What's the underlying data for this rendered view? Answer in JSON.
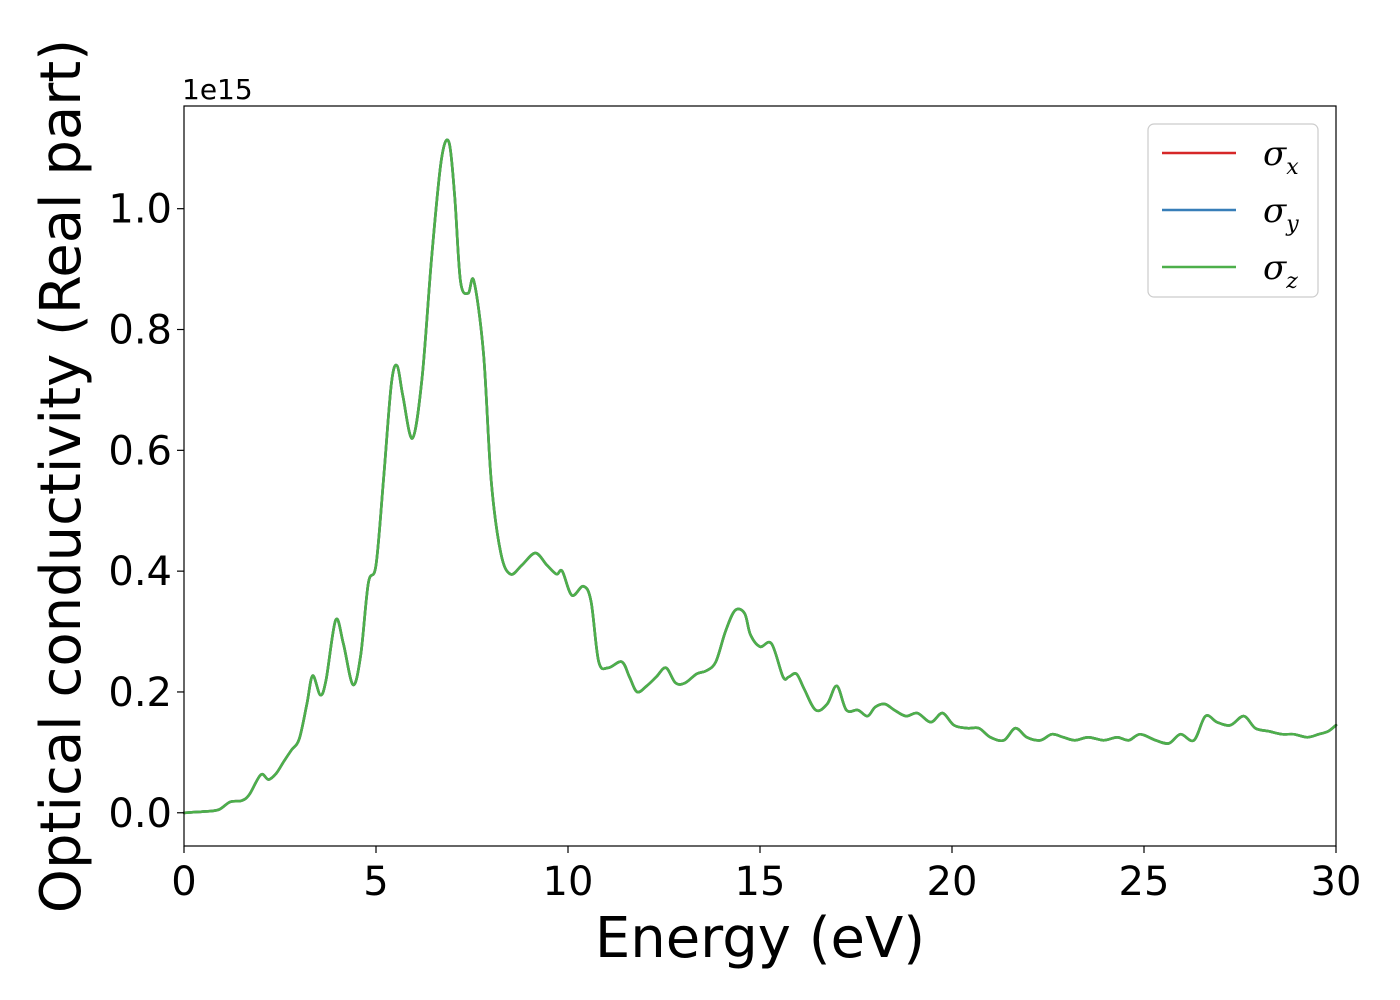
{
  "chart_data": {
    "type": "line",
    "xlabel": "Energy (eV)",
    "ylabel": "Optical conductivity (Real part)",
    "y_offset_text": "1e15",
    "xlim": [
      0,
      30
    ],
    "ylim": [
      -0.055,
      1.17
    ],
    "y_scale_factor": 1000000000000000.0,
    "xticks": [
      0,
      5,
      10,
      15,
      20,
      25,
      30
    ],
    "xtick_labels": [
      "0",
      "5",
      "10",
      "15",
      "20",
      "25",
      "30"
    ],
    "yticks": [
      0.0,
      0.2,
      0.4,
      0.6,
      0.8,
      1.0
    ],
    "ytick_labels": [
      "0.0",
      "0.2",
      "0.4",
      "0.6",
      "0.8",
      "1.0"
    ],
    "grid": false,
    "legend_position": "top-right",
    "x": [
      0,
      0.5,
      0.9,
      1.2,
      1.5,
      1.7,
      2.0,
      2.2,
      2.4,
      2.6,
      2.8,
      3.0,
      3.2,
      3.35,
      3.55,
      3.7,
      3.95,
      4.15,
      4.4,
      4.6,
      4.8,
      5.0,
      5.2,
      5.4,
      5.55,
      5.7,
      5.95,
      6.2,
      6.45,
      6.7,
      6.9,
      7.05,
      7.2,
      7.4,
      7.55,
      7.8,
      8.0,
      8.25,
      8.5,
      8.8,
      9.15,
      9.45,
      9.7,
      9.85,
      10.1,
      10.4,
      10.6,
      10.8,
      11.05,
      11.4,
      11.6,
      11.8,
      12.05,
      12.3,
      12.55,
      12.8,
      13.05,
      13.35,
      13.6,
      13.85,
      14.1,
      14.35,
      14.6,
      14.75,
      15.0,
      15.3,
      15.6,
      15.75,
      15.95,
      16.15,
      16.45,
      16.75,
      17.0,
      17.25,
      17.55,
      17.8,
      18.0,
      18.25,
      18.5,
      18.8,
      19.1,
      19.45,
      19.75,
      20.05,
      20.4,
      20.7,
      21.0,
      21.35,
      21.65,
      21.95,
      22.3,
      22.6,
      22.9,
      23.2,
      23.55,
      23.95,
      24.3,
      24.6,
      24.9,
      25.3,
      25.65,
      25.95,
      26.3,
      26.6,
      26.9,
      27.25,
      27.6,
      27.9,
      28.25,
      28.6,
      28.9,
      29.25,
      29.55,
      29.8,
      30.0
    ],
    "series": [
      {
        "name": "σx",
        "color": "#d62728",
        "y": [
          0.0,
          0.002,
          0.005,
          0.018,
          0.02,
          0.03,
          0.063,
          0.055,
          0.065,
          0.085,
          0.104,
          0.122,
          0.18,
          0.227,
          0.195,
          0.22,
          0.319,
          0.28,
          0.212,
          0.26,
          0.38,
          0.41,
          0.555,
          0.71,
          0.74,
          0.69,
          0.62,
          0.72,
          0.92,
          1.08,
          1.11,
          1.02,
          0.88,
          0.86,
          0.88,
          0.76,
          0.55,
          0.43,
          0.395,
          0.41,
          0.43,
          0.41,
          0.395,
          0.4,
          0.36,
          0.375,
          0.35,
          0.25,
          0.24,
          0.25,
          0.225,
          0.2,
          0.21,
          0.225,
          0.24,
          0.215,
          0.215,
          0.23,
          0.235,
          0.25,
          0.3,
          0.335,
          0.33,
          0.295,
          0.275,
          0.28,
          0.225,
          0.225,
          0.23,
          0.205,
          0.17,
          0.18,
          0.21,
          0.17,
          0.17,
          0.16,
          0.175,
          0.18,
          0.17,
          0.16,
          0.165,
          0.15,
          0.165,
          0.145,
          0.14,
          0.14,
          0.125,
          0.12,
          0.14,
          0.125,
          0.12,
          0.13,
          0.125,
          0.12,
          0.125,
          0.12,
          0.125,
          0.12,
          0.13,
          0.12,
          0.115,
          0.13,
          0.12,
          0.16,
          0.15,
          0.145,
          0.16,
          0.14,
          0.135,
          0.13,
          0.13,
          0.125,
          0.13,
          0.135,
          0.145
        ]
      },
      {
        "name": "σy",
        "color": "#377eb8",
        "y": [
          0.0,
          0.002,
          0.005,
          0.018,
          0.02,
          0.03,
          0.063,
          0.055,
          0.065,
          0.085,
          0.104,
          0.122,
          0.18,
          0.227,
          0.195,
          0.22,
          0.319,
          0.28,
          0.212,
          0.26,
          0.38,
          0.41,
          0.555,
          0.71,
          0.74,
          0.69,
          0.62,
          0.72,
          0.92,
          1.08,
          1.11,
          1.02,
          0.88,
          0.86,
          0.88,
          0.76,
          0.55,
          0.43,
          0.395,
          0.41,
          0.43,
          0.41,
          0.395,
          0.4,
          0.36,
          0.375,
          0.35,
          0.25,
          0.24,
          0.25,
          0.225,
          0.2,
          0.21,
          0.225,
          0.24,
          0.215,
          0.215,
          0.23,
          0.235,
          0.25,
          0.3,
          0.335,
          0.33,
          0.295,
          0.275,
          0.28,
          0.225,
          0.225,
          0.23,
          0.205,
          0.17,
          0.18,
          0.21,
          0.17,
          0.17,
          0.16,
          0.175,
          0.18,
          0.17,
          0.16,
          0.165,
          0.15,
          0.165,
          0.145,
          0.14,
          0.14,
          0.125,
          0.12,
          0.14,
          0.125,
          0.12,
          0.13,
          0.125,
          0.12,
          0.125,
          0.12,
          0.125,
          0.12,
          0.13,
          0.12,
          0.115,
          0.13,
          0.12,
          0.16,
          0.15,
          0.145,
          0.16,
          0.14,
          0.135,
          0.13,
          0.13,
          0.125,
          0.13,
          0.135,
          0.145
        ]
      },
      {
        "name": "σz",
        "color": "#4daf4a",
        "y": [
          0.0,
          0.002,
          0.005,
          0.018,
          0.02,
          0.03,
          0.063,
          0.055,
          0.065,
          0.085,
          0.104,
          0.122,
          0.18,
          0.227,
          0.195,
          0.22,
          0.319,
          0.28,
          0.212,
          0.26,
          0.38,
          0.41,
          0.555,
          0.71,
          0.74,
          0.69,
          0.62,
          0.72,
          0.92,
          1.08,
          1.11,
          1.02,
          0.88,
          0.86,
          0.88,
          0.76,
          0.55,
          0.43,
          0.395,
          0.41,
          0.43,
          0.41,
          0.395,
          0.4,
          0.36,
          0.375,
          0.35,
          0.25,
          0.24,
          0.25,
          0.225,
          0.2,
          0.21,
          0.225,
          0.24,
          0.215,
          0.215,
          0.23,
          0.235,
          0.25,
          0.3,
          0.335,
          0.33,
          0.295,
          0.275,
          0.28,
          0.225,
          0.225,
          0.23,
          0.205,
          0.17,
          0.18,
          0.21,
          0.17,
          0.17,
          0.16,
          0.175,
          0.18,
          0.17,
          0.16,
          0.165,
          0.15,
          0.165,
          0.145,
          0.14,
          0.14,
          0.125,
          0.12,
          0.14,
          0.125,
          0.12,
          0.13,
          0.125,
          0.12,
          0.125,
          0.12,
          0.125,
          0.12,
          0.13,
          0.12,
          0.115,
          0.13,
          0.12,
          0.16,
          0.15,
          0.145,
          0.16,
          0.14,
          0.135,
          0.13,
          0.13,
          0.125,
          0.13,
          0.135,
          0.145
        ]
      }
    ],
    "legend": [
      {
        "symbol": "σ",
        "subscript": "x",
        "color": "#d62728"
      },
      {
        "symbol": "σ",
        "subscript": "y",
        "color": "#377eb8"
      },
      {
        "symbol": "σ",
        "subscript": "z",
        "color": "#4daf4a"
      }
    ]
  }
}
